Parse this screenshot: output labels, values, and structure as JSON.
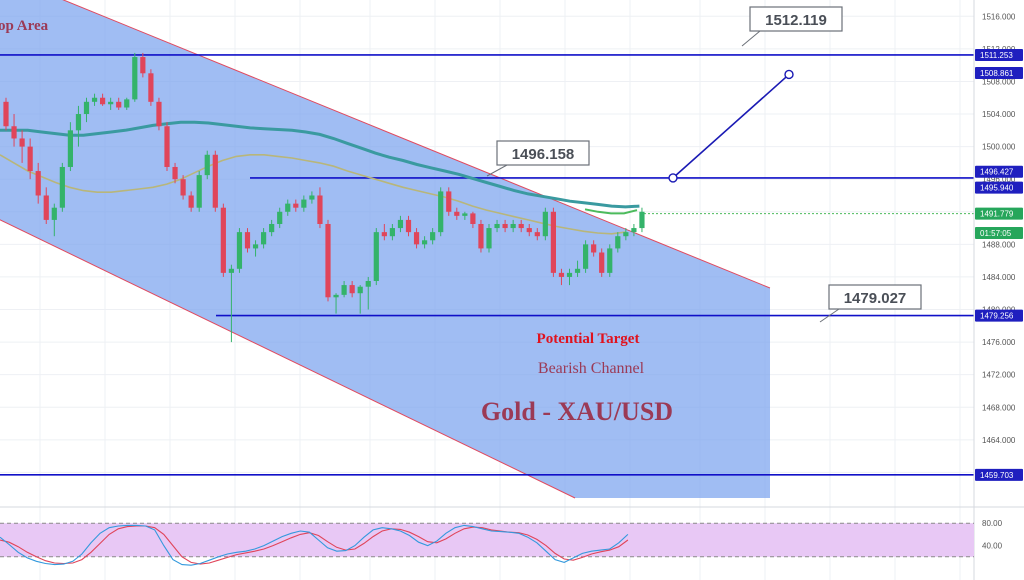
{
  "chart_data": {
    "type": "candlestick",
    "title": "Gold - XAU/USD",
    "subtitle": "Bearish Channel",
    "annotation_target": "Potential Target",
    "top_label": "op Area",
    "ylim": [
      1456,
      1518
    ],
    "yticks": [
      1516,
      1512,
      1508,
      1504,
      1500,
      1496,
      1492,
      1488,
      1484,
      1480,
      1476,
      1472,
      1468,
      1464,
      1460
    ],
    "candles": [
      {
        "o": 1505.5,
        "h": 1506,
        "l": 1502,
        "c": 1502.5
      },
      {
        "o": 1502.5,
        "h": 1504,
        "l": 1500,
        "c": 1501
      },
      {
        "o": 1501,
        "h": 1502,
        "l": 1498,
        "c": 1500
      },
      {
        "o": 1500,
        "h": 1501,
        "l": 1496,
        "c": 1497
      },
      {
        "o": 1497,
        "h": 1498,
        "l": 1493,
        "c": 1494
      },
      {
        "o": 1494,
        "h": 1495,
        "l": 1490.5,
        "c": 1491
      },
      {
        "o": 1491,
        "h": 1493,
        "l": 1489,
        "c": 1492.5
      },
      {
        "o": 1492.5,
        "h": 1498,
        "l": 1492,
        "c": 1497.5
      },
      {
        "o": 1497.5,
        "h": 1503,
        "l": 1497,
        "c": 1502
      },
      {
        "o": 1502,
        "h": 1505,
        "l": 1500,
        "c": 1504
      },
      {
        "o": 1504,
        "h": 1506,
        "l": 1503,
        "c": 1505.5
      },
      {
        "o": 1505.5,
        "h": 1506.5,
        "l": 1505,
        "c": 1506
      },
      {
        "o": 1506,
        "h": 1506.5,
        "l": 1505,
        "c": 1505.2
      },
      {
        "o": 1505.2,
        "h": 1506,
        "l": 1504.5,
        "c": 1505.5
      },
      {
        "o": 1505.5,
        "h": 1506,
        "l": 1504.5,
        "c": 1504.8
      },
      {
        "o": 1504.8,
        "h": 1506,
        "l": 1504.5,
        "c": 1505.8
      },
      {
        "o": 1505.8,
        "h": 1511.5,
        "l": 1505.5,
        "c": 1511
      },
      {
        "o": 1511,
        "h": 1511.5,
        "l": 1508.5,
        "c": 1509
      },
      {
        "o": 1509,
        "h": 1509.5,
        "l": 1505,
        "c": 1505.5
      },
      {
        "o": 1505.5,
        "h": 1506,
        "l": 1502,
        "c": 1502.5
      },
      {
        "o": 1502.5,
        "h": 1503,
        "l": 1497,
        "c": 1497.5
      },
      {
        "o": 1497.5,
        "h": 1498,
        "l": 1495.5,
        "c": 1496
      },
      {
        "o": 1496,
        "h": 1496.5,
        "l": 1493.5,
        "c": 1494
      },
      {
        "o": 1494,
        "h": 1494.5,
        "l": 1492,
        "c": 1492.5
      },
      {
        "o": 1492.5,
        "h": 1497,
        "l": 1492,
        "c": 1496.5
      },
      {
        "o": 1496.5,
        "h": 1499.5,
        "l": 1496,
        "c": 1499
      },
      {
        "o": 1499,
        "h": 1499.5,
        "l": 1492,
        "c": 1492.5
      },
      {
        "o": 1492.5,
        "h": 1493,
        "l": 1484,
        "c": 1484.5
      },
      {
        "o": 1484.5,
        "h": 1485.5,
        "l": 1476,
        "c": 1485
      },
      {
        "o": 1485,
        "h": 1490,
        "l": 1484.5,
        "c": 1489.5
      },
      {
        "o": 1489.5,
        "h": 1490,
        "l": 1487,
        "c": 1487.5
      },
      {
        "o": 1487.5,
        "h": 1488.5,
        "l": 1486.5,
        "c": 1488
      },
      {
        "o": 1488,
        "h": 1490,
        "l": 1487.5,
        "c": 1489.5
      },
      {
        "o": 1489.5,
        "h": 1491,
        "l": 1489,
        "c": 1490.5
      },
      {
        "o": 1490.5,
        "h": 1492.5,
        "l": 1490,
        "c": 1492
      },
      {
        "o": 1492,
        "h": 1493.5,
        "l": 1491.5,
        "c": 1493
      },
      {
        "o": 1493,
        "h": 1493.5,
        "l": 1492,
        "c": 1492.5
      },
      {
        "o": 1492.5,
        "h": 1494,
        "l": 1492,
        "c": 1493.5
      },
      {
        "o": 1493.5,
        "h": 1494.5,
        "l": 1493,
        "c": 1494
      },
      {
        "o": 1494,
        "h": 1495,
        "l": 1490,
        "c": 1490.5
      },
      {
        "o": 1490.5,
        "h": 1491,
        "l": 1481,
        "c": 1481.5
      },
      {
        "o": 1481.5,
        "h": 1482,
        "l": 1479.5,
        "c": 1481.8
      },
      {
        "o": 1481.8,
        "h": 1483.5,
        "l": 1481.5,
        "c": 1483
      },
      {
        "o": 1483,
        "h": 1483.5,
        "l": 1481.5,
        "c": 1482
      },
      {
        "o": 1482,
        "h": 1483,
        "l": 1479.5,
        "c": 1482.8
      },
      {
        "o": 1482.8,
        "h": 1484,
        "l": 1480,
        "c": 1483.5
      },
      {
        "o": 1483.5,
        "h": 1490,
        "l": 1483,
        "c": 1489.5
      },
      {
        "o": 1489.5,
        "h": 1490.5,
        "l": 1488.5,
        "c": 1489
      },
      {
        "o": 1489,
        "h": 1490.5,
        "l": 1488.5,
        "c": 1490
      },
      {
        "o": 1490,
        "h": 1491.5,
        "l": 1489.5,
        "c": 1491
      },
      {
        "o": 1491,
        "h": 1491.5,
        "l": 1489,
        "c": 1489.5
      },
      {
        "o": 1489.5,
        "h": 1490,
        "l": 1487.5,
        "c": 1488
      },
      {
        "o": 1488,
        "h": 1489,
        "l": 1487.5,
        "c": 1488.5
      },
      {
        "o": 1488.5,
        "h": 1490,
        "l": 1488,
        "c": 1489.5
      },
      {
        "o": 1489.5,
        "h": 1495,
        "l": 1489,
        "c": 1494.5
      },
      {
        "o": 1494.5,
        "h": 1495,
        "l": 1491.5,
        "c": 1492
      },
      {
        "o": 1492,
        "h": 1492.5,
        "l": 1491,
        "c": 1491.5
      },
      {
        "o": 1491.5,
        "h": 1492,
        "l": 1491,
        "c": 1491.8
      },
      {
        "o": 1491.8,
        "h": 1492,
        "l": 1490,
        "c": 1490.5
      },
      {
        "o": 1490.5,
        "h": 1491,
        "l": 1487,
        "c": 1487.5
      },
      {
        "o": 1487.5,
        "h": 1490.5,
        "l": 1487,
        "c": 1490
      },
      {
        "o": 1490,
        "h": 1491,
        "l": 1489.5,
        "c": 1490.5
      },
      {
        "o": 1490.5,
        "h": 1491,
        "l": 1489.5,
        "c": 1490
      },
      {
        "o": 1490,
        "h": 1491,
        "l": 1489.5,
        "c": 1490.5
      },
      {
        "o": 1490.5,
        "h": 1491,
        "l": 1489.5,
        "c": 1490
      },
      {
        "o": 1490,
        "h": 1490.5,
        "l": 1489,
        "c": 1489.5
      },
      {
        "o": 1489.5,
        "h": 1490,
        "l": 1488.5,
        "c": 1489
      },
      {
        "o": 1489,
        "h": 1492.5,
        "l": 1488.5,
        "c": 1492
      },
      {
        "o": 1492,
        "h": 1492.5,
        "l": 1484,
        "c": 1484.5
      },
      {
        "o": 1484.5,
        "h": 1485,
        "l": 1483,
        "c": 1484
      },
      {
        "o": 1484,
        "h": 1485,
        "l": 1483,
        "c": 1484.5
      },
      {
        "o": 1484.5,
        "h": 1486,
        "l": 1484,
        "c": 1485
      },
      {
        "o": 1485,
        "h": 1488.5,
        "l": 1484.5,
        "c": 1488
      },
      {
        "o": 1488,
        "h": 1488.5,
        "l": 1486.5,
        "c": 1487
      },
      {
        "o": 1487,
        "h": 1487.5,
        "l": 1484,
        "c": 1484.5
      },
      {
        "o": 1484.5,
        "h": 1488,
        "l": 1484,
        "c": 1487.5
      },
      {
        "o": 1487.5,
        "h": 1489.5,
        "l": 1487,
        "c": 1489
      },
      {
        "o": 1489,
        "h": 1490,
        "l": 1488.5,
        "c": 1489.5
      },
      {
        "o": 1489.5,
        "h": 1490.5,
        "l": 1489,
        "c": 1490
      },
      {
        "o": 1490,
        "h": 1492.5,
        "l": 1489.5,
        "c": 1492
      }
    ],
    "ma_slow": [
      1502,
      1502,
      1502,
      1501.8,
      1501.6,
      1501.4,
      1501.4,
      1501.6,
      1501.8,
      1502,
      1502.3,
      1502.6,
      1502.8,
      1503,
      1503,
      1502.9,
      1502.7,
      1502.5,
      1502.3,
      1502.2,
      1502.1,
      1502,
      1501.8,
      1501.5,
      1501,
      1500.4,
      1499.8,
      1499.2,
      1498.7,
      1498.3,
      1497.8,
      1497.4,
      1497,
      1496.6,
      1496.1,
      1495.6,
      1495.1,
      1494.6,
      1494.2,
      1493.9,
      1493.6,
      1493.3,
      1493.1,
      1492.9,
      1492.7,
      1492.6,
      1492.7
    ],
    "ma_fast": [
      1499,
      1498,
      1497,
      1496.3,
      1495.6,
      1495,
      1494.6,
      1494.4,
      1494.4,
      1494.6,
      1494.8,
      1495,
      1495.4,
      1496,
      1496.8,
      1497.6,
      1498.3,
      1498.8,
      1499,
      1499,
      1498.8,
      1498.6,
      1498.3,
      1498,
      1497.6,
      1497,
      1496.5,
      1496,
      1495.5,
      1495,
      1494.6,
      1494.2,
      1493.8,
      1493.3,
      1492.7,
      1492.2,
      1491.8,
      1491.4,
      1491,
      1490.6,
      1490.2,
      1489.9,
      1489.6,
      1489.4,
      1489.3,
      1489.5
    ],
    "ma_green": [
      1492.3,
      1492,
      1491.8,
      1491.8,
      1492.2
    ],
    "levels": [
      {
        "label": "1511.253",
        "value": 1511.253
      },
      {
        "label": "1496.158",
        "value": 1496.158
      },
      {
        "label": "1479.256",
        "value": 1479.256
      },
      {
        "label": "1459.703",
        "value": 1459.703
      }
    ],
    "callouts": [
      {
        "text": "1512.119",
        "value": 1512.119
      },
      {
        "text": "1496.158",
        "value": 1496.158
      },
      {
        "text": "1479.027",
        "value": 1479.027
      }
    ],
    "projection": {
      "from": 1496.158,
      "to": 1508.861
    },
    "price_tags": [
      {
        "text": "1511.253",
        "value": 1511.253,
        "color": "#1f1fbf"
      },
      {
        "text": "1508.861",
        "value": 1508.861,
        "color": "#1f1fbf"
      },
      {
        "text": "1496.427",
        "value": 1496.427,
        "color": "#1f1fbf"
      },
      {
        "text": "1495.940",
        "value": 1495.94,
        "color": "#1f1fbf"
      },
      {
        "text": "1491.779",
        "value": 1491.779,
        "color": "#26a65b"
      },
      {
        "text": "01:57:05",
        "value": 1489.4,
        "color": "#26a65b"
      },
      {
        "text": "1479.256",
        "value": 1479.256,
        "color": "#1f1fbf"
      },
      {
        "text": "1459.703",
        "value": 1459.703,
        "color": "#1f1fbf"
      }
    ],
    "oscillator": {
      "ylim": [
        0,
        100
      ],
      "yticks": [
        80,
        40
      ],
      "bands": [
        80,
        20
      ],
      "k": [
        55,
        42,
        28,
        18,
        12,
        8,
        6,
        7,
        12,
        25,
        45,
        62,
        72,
        75,
        76,
        76,
        75,
        68,
        40,
        15,
        6,
        5,
        8,
        14,
        20,
        25,
        28,
        30,
        34,
        40,
        48,
        56,
        62,
        66,
        64,
        50,
        36,
        30,
        31,
        40,
        55,
        68,
        72,
        70,
        66,
        58,
        46,
        40,
        48,
        62,
        72,
        76,
        74,
        70,
        66,
        65,
        64,
        62,
        55,
        45,
        30,
        15,
        10,
        18,
        26,
        30,
        32,
        34,
        45,
        60
      ],
      "d": [
        50,
        46,
        38,
        28,
        20,
        13,
        9,
        8,
        9,
        15,
        28,
        44,
        60,
        70,
        74,
        75,
        75,
        72,
        60,
        40,
        20,
        10,
        7,
        9,
        14,
        19,
        24,
        27,
        30,
        34,
        40,
        47,
        54,
        60,
        63,
        58,
        47,
        37,
        32,
        34,
        44,
        56,
        66,
        70,
        69,
        64,
        56,
        47,
        45,
        52,
        62,
        70,
        73,
        72,
        68,
        66,
        64,
        63,
        59,
        51,
        40,
        26,
        16,
        14,
        19,
        25,
        29,
        32,
        38,
        50
      ]
    }
  },
  "colors": {
    "channel_fill": "#7ba4ef",
    "channel_border": "#e04a5f",
    "level_line": "#1010c8",
    "up": "#34b36a",
    "down": "#e0455a",
    "ma_slow": "#3a9aa0",
    "ma_fast": "#b8b67a",
    "ma_green": "#4cbb5c",
    "title": "#9b3a56",
    "target": "#e0121e",
    "osc_bg": "#e8c8f5",
    "osc_k": "#3399dd",
    "osc_d": "#e0455a"
  }
}
